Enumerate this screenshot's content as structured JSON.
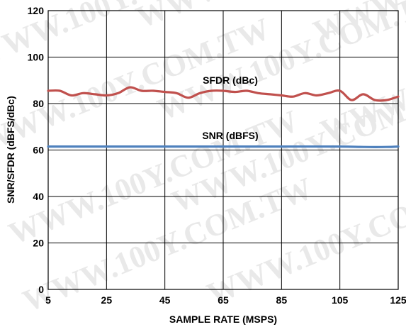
{
  "watermark": "WWW.100Y.COM.TW",
  "chart_data": {
    "type": "line",
    "xlabel": "SAMPLE RATE (MSPS)",
    "ylabel": "SNR/SFDR (dBFS/dBc)",
    "xlim": [
      5,
      125
    ],
    "ylim": [
      0,
      120
    ],
    "xticks": [
      5,
      25,
      45,
      65,
      85,
      105,
      125
    ],
    "yticks": [
      0,
      20,
      40,
      60,
      80,
      100,
      120
    ],
    "grid": true,
    "series": [
      {
        "name": "SFDR (dBc)",
        "color": "#c0504d",
        "x": [
          5,
          9,
          13,
          17,
          21,
          25,
          29,
          33,
          37,
          41,
          45,
          49,
          53,
          57,
          61,
          65,
          69,
          73,
          77,
          81,
          85,
          89,
          93,
          97,
          101,
          105,
          109,
          113,
          117,
          121,
          125
        ],
        "y": [
          85.5,
          85.5,
          83.5,
          84.5,
          84,
          83.5,
          84.5,
          87,
          85.5,
          85.5,
          85,
          84.5,
          82.5,
          84.5,
          85.5,
          85.5,
          85,
          85.5,
          84.5,
          84,
          83.5,
          83,
          84.5,
          83.5,
          84.5,
          85.5,
          81.5,
          84,
          81.5,
          81.5,
          83
        ]
      },
      {
        "name": "SNR (dBFS)",
        "color": "#4f81bd",
        "x": [
          5,
          25,
          45,
          65,
          85,
          105,
          113,
          121,
          125
        ],
        "y": [
          61.5,
          61.5,
          61.5,
          61.5,
          61.5,
          61.5,
          61.3,
          61.3,
          61.5
        ]
      }
    ]
  }
}
